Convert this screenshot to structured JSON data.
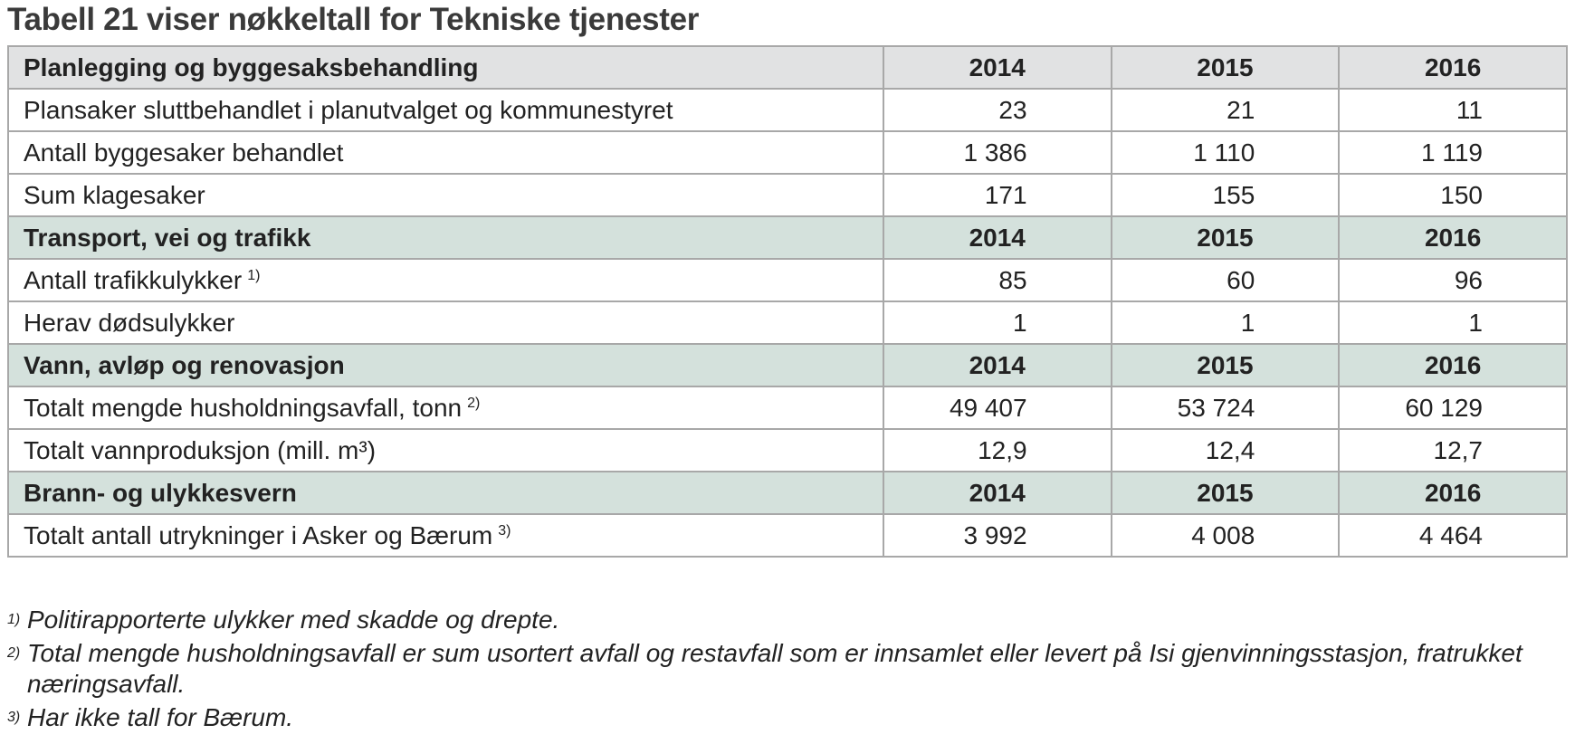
{
  "title": "Tabell 21 viser nøkkeltall for Tekniske tjenester",
  "sections": [
    {
      "header": [
        "Planlegging og byggesaksbehandling",
        "2014",
        "2015",
        "2016"
      ],
      "rows": [
        {
          "label": "Plansaker sluttbehandlet i planutvalget og kommunestyret",
          "cells": [
            "23",
            "21",
            "11"
          ]
        },
        {
          "label": "Antall byggesaker behandlet",
          "cells": [
            "1 386",
            "1 110",
            "1 119"
          ]
        },
        {
          "label": "Sum klagesaker",
          "cells": [
            "171",
            "155",
            "150"
          ]
        }
      ]
    },
    {
      "header": [
        "Transport, vei og trafikk",
        "2014",
        "2015",
        "2016"
      ],
      "rows": [
        {
          "label": "Antall trafikkulykker",
          "note": "1)",
          "cells": [
            "85",
            "60",
            "96"
          ]
        },
        {
          "label": "Herav dødsulykker",
          "cells": [
            "1",
            "1",
            "1"
          ]
        }
      ]
    },
    {
      "header": [
        "Vann, avløp og renovasjon",
        "2014",
        "2015",
        "2016"
      ],
      "rows": [
        {
          "label": "Totalt mengde husholdningsavfall, tonn",
          "note": "2)",
          "cells": [
            "49 407",
            "53 724",
            "60 129"
          ]
        },
        {
          "label": "Totalt vannproduksjon (mill. m³)",
          "cells": [
            "12,9",
            "12,4",
            "12,7"
          ]
        }
      ]
    },
    {
      "header": [
        "Brann- og ulykkesvern",
        "2014",
        "2015",
        "2016"
      ],
      "rows": [
        {
          "label": "Totalt antall utrykninger i Asker og Bærum",
          "note": "3)",
          "cells": [
            "3 992",
            "4 008",
            "4 464"
          ]
        }
      ]
    }
  ],
  "footnotes": [
    {
      "marker": "1)",
      "text": "Politirapporterte ulykker med skadde og drepte."
    },
    {
      "marker": "2)",
      "text": "Total mengde husholdningsavfall er sum usortert avfall og restavfall som er innsamlet eller levert på Isi gjenvinningsstasjon, fratrukket næringsavfall."
    },
    {
      "marker": "3)",
      "text": "Har ikke tall for Bærum."
    }
  ]
}
